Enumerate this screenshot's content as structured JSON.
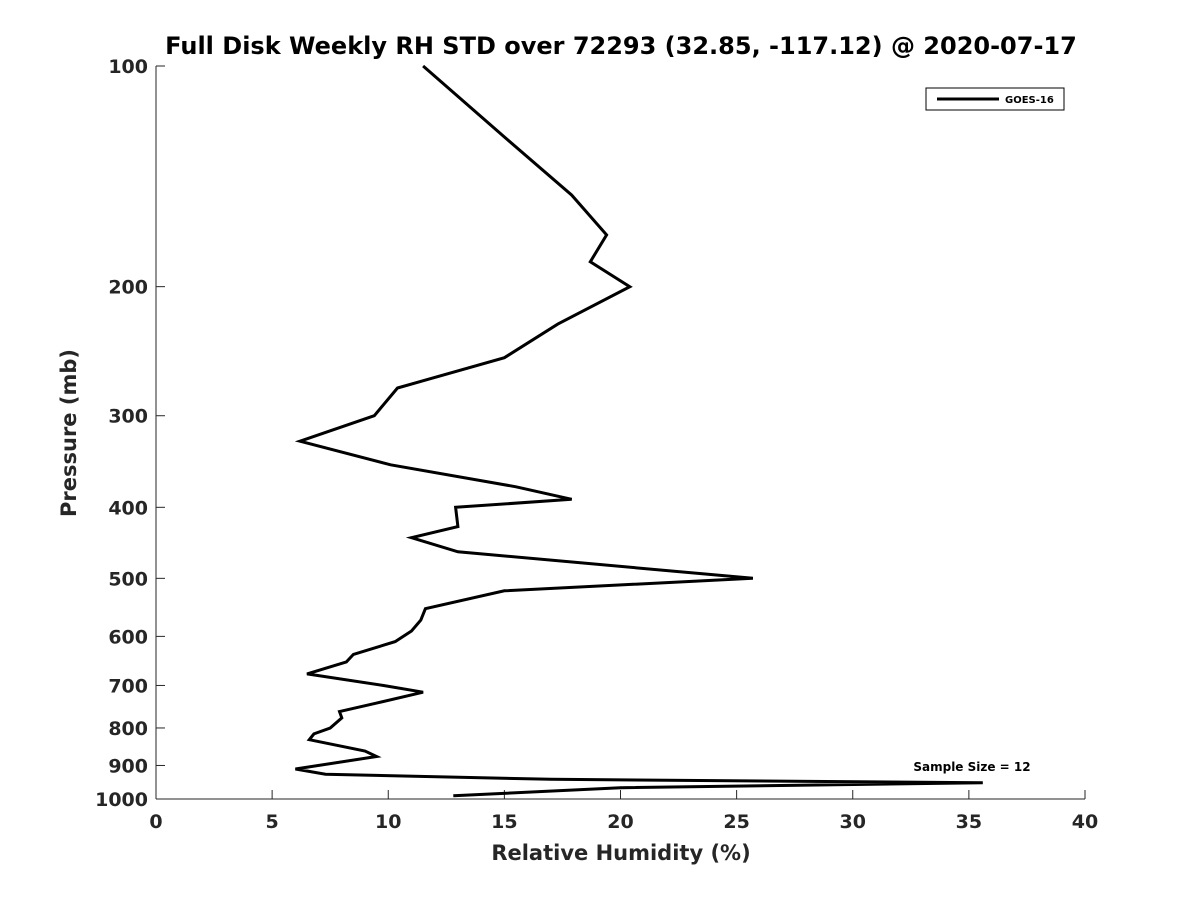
{
  "chart_data": {
    "type": "line",
    "title": "Full Disk Weekly RH STD over 72293 (32.85, -117.12) @ 2020-07-17",
    "xlabel": "Relative Humidity (%)",
    "ylabel": "Pressure (mb)",
    "xlim": [
      0,
      40
    ],
    "ylim": [
      100,
      1000
    ],
    "y_scale": "log",
    "y_reversed": true,
    "xticks": [
      0,
      5,
      10,
      15,
      20,
      25,
      30,
      35,
      40
    ],
    "yticks": [
      100,
      200,
      300,
      400,
      500,
      600,
      700,
      800,
      900,
      1000
    ],
    "grid": false,
    "legend_position": "top-right",
    "annotation": "Sample Size = 12",
    "series": [
      {
        "name": "GOES-16",
        "color": "#000000",
        "x": [
          11.5,
          15.0,
          17.9,
          19.4,
          18.7,
          20.4,
          17.3,
          15.0,
          10.4,
          9.4,
          6.2,
          10.1,
          15.5,
          17.9,
          12.9,
          13.0,
          11.0,
          13.0,
          25.7,
          15.0,
          11.6,
          11.4,
          11.0,
          10.3,
          8.5,
          8.2,
          6.5,
          9.8,
          11.5,
          9.5,
          7.9,
          8.0,
          7.5,
          6.8,
          6.6,
          9.0,
          9.5,
          6.0,
          7.3,
          17.0,
          35.6,
          20.0,
          12.8
        ],
        "y": [
          100,
          125,
          150,
          170,
          185,
          200,
          225,
          250,
          275,
          300,
          325,
          350,
          375,
          390,
          400,
          425,
          440,
          460,
          500,
          520,
          550,
          570,
          590,
          610,
          635,
          650,
          675,
          700,
          715,
          740,
          760,
          775,
          800,
          815,
          830,
          860,
          875,
          910,
          925,
          940,
          950,
          965,
          990
        ]
      }
    ]
  }
}
